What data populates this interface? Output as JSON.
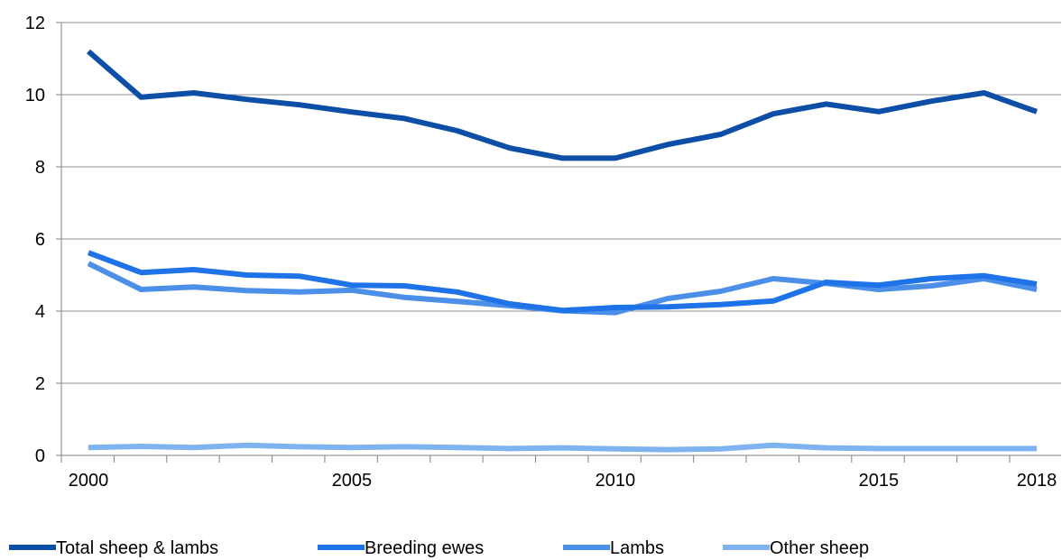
{
  "chart_data": {
    "type": "line",
    "x": [
      2000,
      2001,
      2002,
      2003,
      2004,
      2005,
      2006,
      2007,
      2008,
      2009,
      2010,
      2011,
      2012,
      2013,
      2014,
      2015,
      2016,
      2017,
      2018
    ],
    "x_tick_labels": [
      "2000",
      "2005",
      "2010",
      "2015",
      "2018"
    ],
    "y_tick_labels": [
      "0",
      "2",
      "4",
      "6",
      "8",
      "10",
      "12"
    ],
    "ylim": [
      0,
      12
    ],
    "xlim": [
      2000,
      2018
    ],
    "grid": "horizontal",
    "legend_position": "bottom",
    "series": [
      {
        "name": "Total sheep & lambs",
        "color": "#0d4ea6",
        "values": [
          11.2,
          9.93,
          10.05,
          9.87,
          9.72,
          9.52,
          9.34,
          9.0,
          8.52,
          8.24,
          8.24,
          8.62,
          8.9,
          9.47,
          9.74,
          9.53,
          9.82,
          10.05,
          9.53
        ]
      },
      {
        "name": "Breeding ewes",
        "color": "#1f73e8",
        "values": [
          5.62,
          5.07,
          5.15,
          5.0,
          4.97,
          4.72,
          4.7,
          4.53,
          4.2,
          4.02,
          4.1,
          4.12,
          4.18,
          4.28,
          4.8,
          4.72,
          4.9,
          4.98,
          4.75
        ]
      },
      {
        "name": "Lambs",
        "color": "#4b8fe8",
        "values": [
          5.32,
          4.6,
          4.67,
          4.57,
          4.53,
          4.58,
          4.38,
          4.27,
          4.15,
          4.01,
          3.96,
          4.35,
          4.55,
          4.9,
          4.77,
          4.6,
          4.7,
          4.9,
          4.6
        ]
      },
      {
        "name": "Other sheep",
        "color": "#7fb3f0",
        "values": [
          0.22,
          0.25,
          0.22,
          0.28,
          0.24,
          0.22,
          0.24,
          0.22,
          0.19,
          0.21,
          0.18,
          0.16,
          0.18,
          0.28,
          0.21,
          0.19,
          0.19,
          0.19,
          0.19
        ]
      }
    ]
  }
}
